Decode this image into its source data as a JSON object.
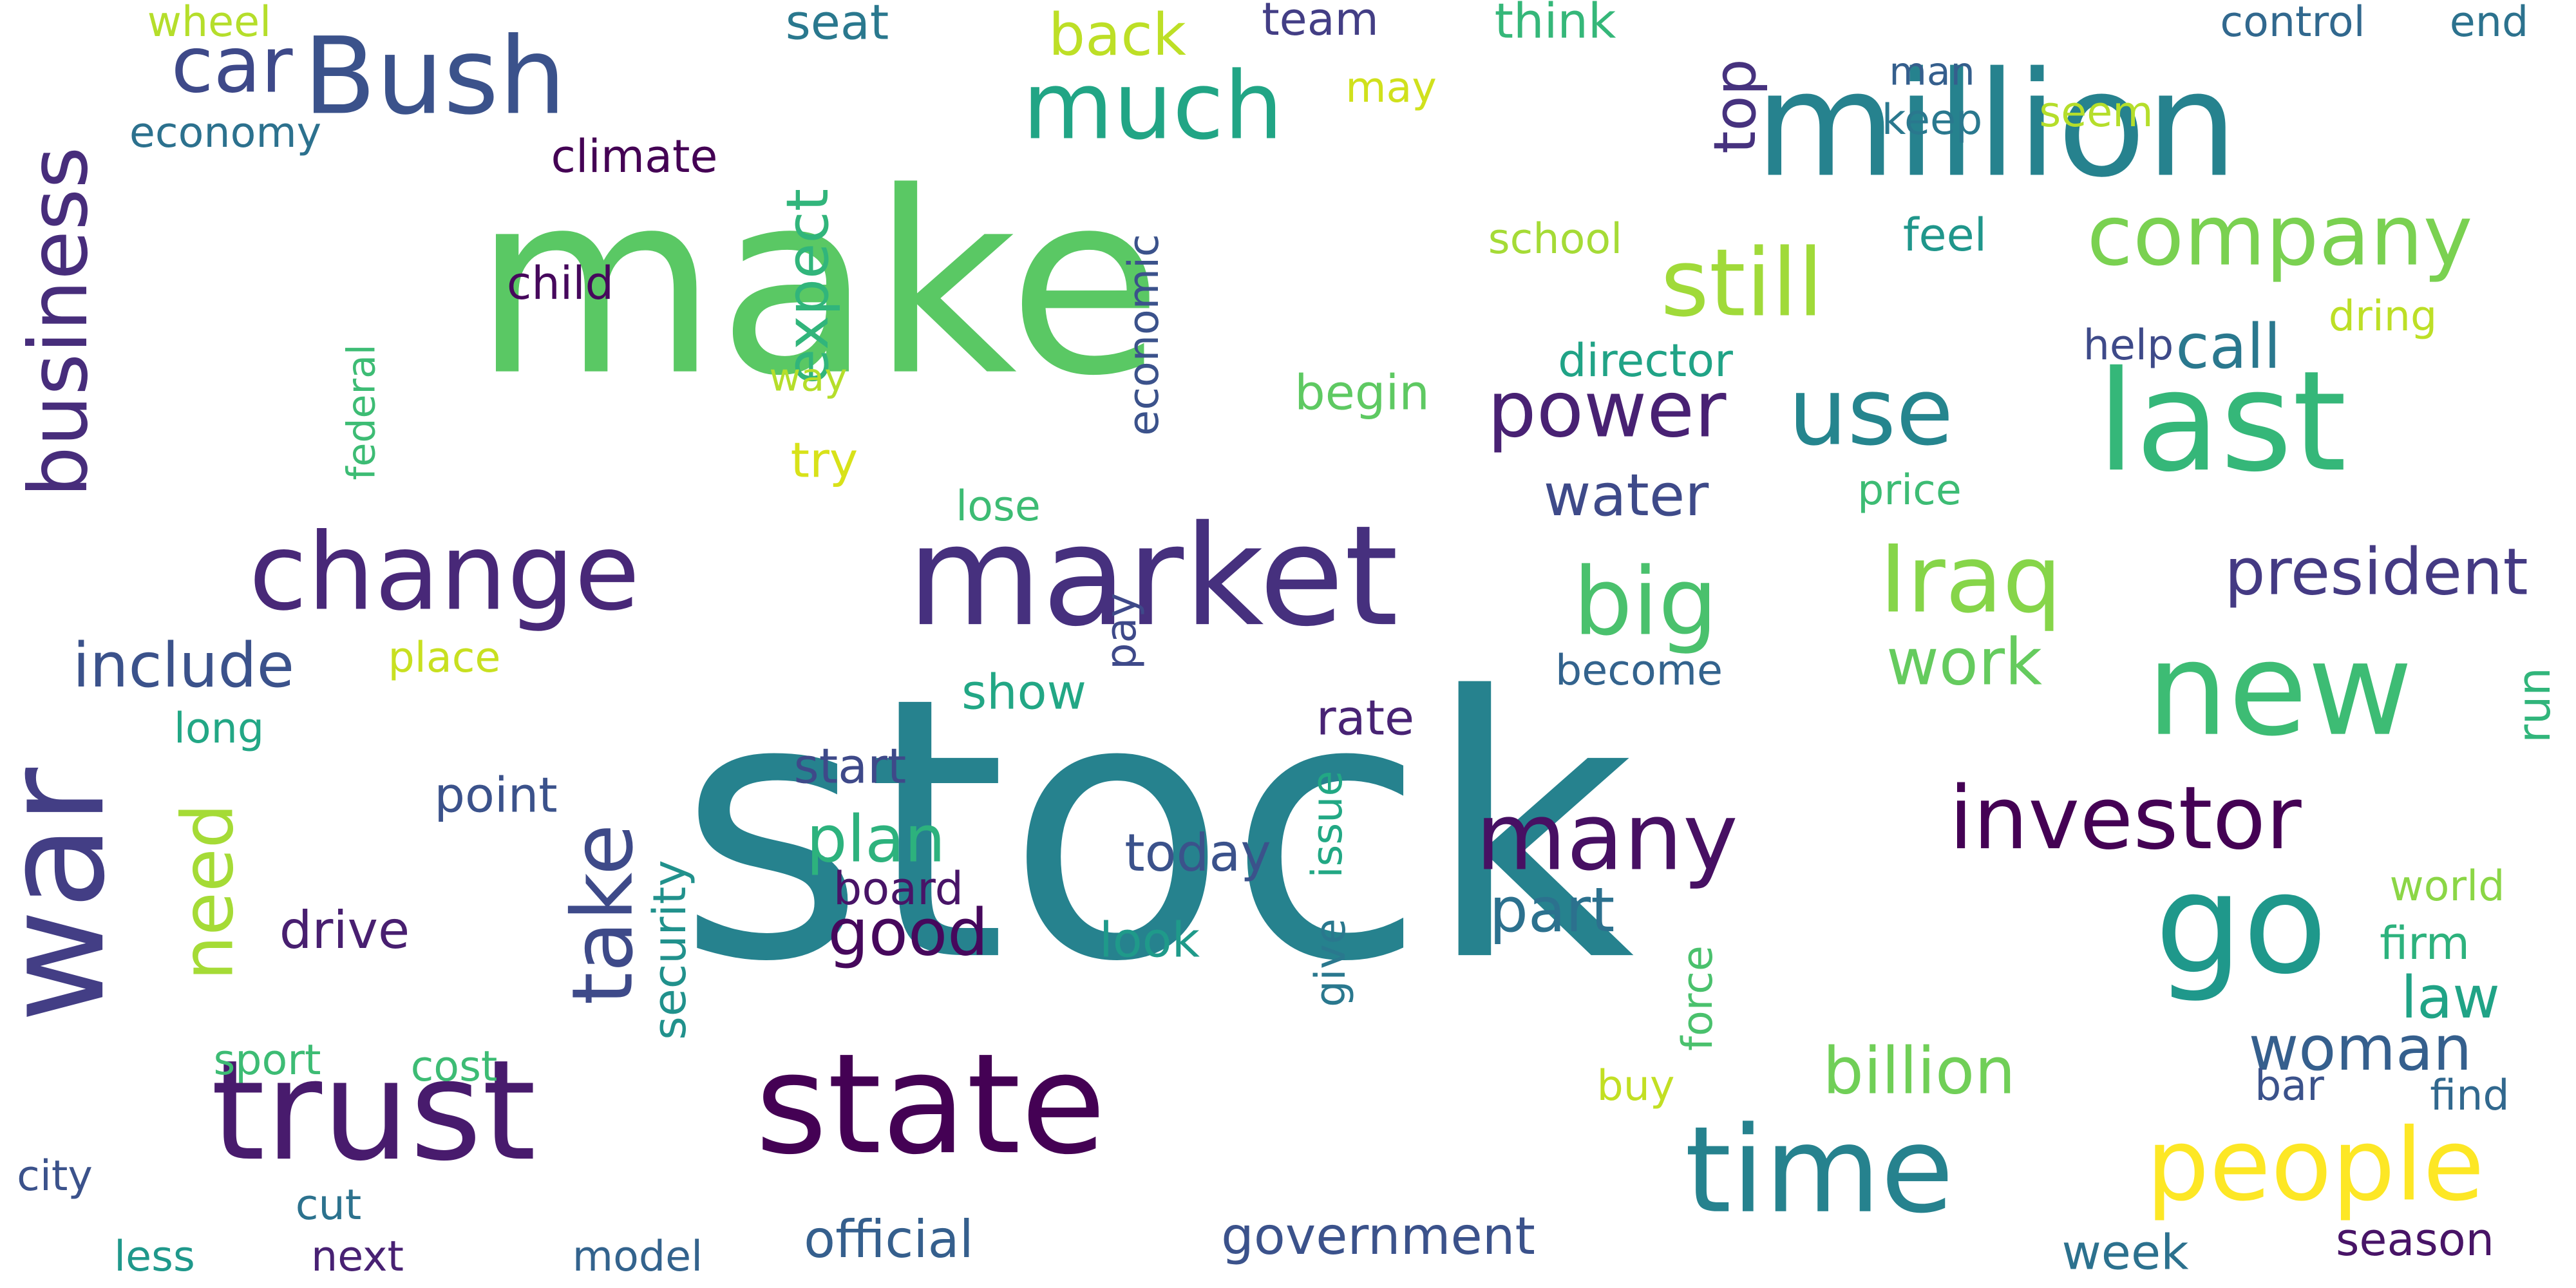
{
  "word_cloud": {
    "words": [
      {
        "text": "stock",
        "color": "#26828e"
      },
      {
        "text": "make",
        "color": "#5ac864"
      },
      {
        "text": "million",
        "color": "#26828e"
      },
      {
        "text": "trust",
        "color": "#481b6d"
      },
      {
        "text": "state",
        "color": "#440154"
      },
      {
        "text": "war",
        "color": "#433e85"
      },
      {
        "text": "market",
        "color": "#46307e"
      },
      {
        "text": "go",
        "color": "#1f988b"
      },
      {
        "text": "last",
        "color": "#35b779"
      },
      {
        "text": "new",
        "color": "#3dbc74"
      },
      {
        "text": "time",
        "color": "#26828e"
      },
      {
        "text": "people",
        "color": "#fde725"
      },
      {
        "text": "change",
        "color": "#482878"
      },
      {
        "text": "Bush",
        "color": "#3b528b"
      },
      {
        "text": "company",
        "color": "#7ad151"
      },
      {
        "text": "much",
        "color": "#21a585"
      },
      {
        "text": "many",
        "color": "#471063"
      },
      {
        "text": "investor",
        "color": "#440154"
      },
      {
        "text": "business",
        "color": "#472d7b"
      },
      {
        "text": "still",
        "color": "#a0da39"
      },
      {
        "text": "use",
        "color": "#25858e"
      },
      {
        "text": "power",
        "color": "#482173"
      },
      {
        "text": "Iraq",
        "color": "#86d549"
      },
      {
        "text": "big",
        "color": "#4ac16d"
      },
      {
        "text": "take",
        "color": "#3e4a89"
      },
      {
        "text": "car",
        "color": "#3e4989"
      },
      {
        "text": "president",
        "color": "#443a83"
      },
      {
        "text": "need",
        "color": "#a5db36"
      },
      {
        "text": "good",
        "color": "#46085c"
      },
      {
        "text": "plan",
        "color": "#2db27d"
      },
      {
        "text": "billion",
        "color": "#70cf57"
      },
      {
        "text": "woman",
        "color": "#355f8d"
      },
      {
        "text": "part",
        "color": "#2c718e"
      },
      {
        "text": "include",
        "color": "#3b528b"
      },
      {
        "text": "expect",
        "color": "#31b57b"
      },
      {
        "text": "government",
        "color": "#3b528b"
      },
      {
        "text": "official",
        "color": "#355f8d"
      },
      {
        "text": "work",
        "color": "#65cb5e"
      },
      {
        "text": "water",
        "color": "#3e4a89"
      },
      {
        "text": "call",
        "color": "#2a788e"
      },
      {
        "text": "law",
        "color": "#20a386"
      },
      {
        "text": "back",
        "color": "#bddf26"
      },
      {
        "text": "top",
        "color": "#46327e"
      },
      {
        "text": "today",
        "color": "#3b528b"
      },
      {
        "text": "drive",
        "color": "#481f70"
      },
      {
        "text": "rate",
        "color": "#482374"
      },
      {
        "text": "show",
        "color": "#22a785"
      },
      {
        "text": "start",
        "color": "#3e4989"
      },
      {
        "text": "point",
        "color": "#3b528b"
      },
      {
        "text": "look",
        "color": "#1f9a8a"
      },
      {
        "text": "board",
        "color": "#481467"
      },
      {
        "text": "security",
        "color": "#21918c"
      },
      {
        "text": "give",
        "color": "#2a788e"
      },
      {
        "text": "issue",
        "color": "#22a884"
      },
      {
        "text": "economic",
        "color": "#3b528b"
      },
      {
        "text": "child",
        "color": "#46085c"
      },
      {
        "text": "climate",
        "color": "#440154"
      },
      {
        "text": "economy",
        "color": "#2c718e"
      },
      {
        "text": "wheel",
        "color": "#b5de2b"
      },
      {
        "text": "seat",
        "color": "#2a788e"
      },
      {
        "text": "team",
        "color": "#433e85"
      },
      {
        "text": "think",
        "color": "#35b779"
      },
      {
        "text": "may",
        "color": "#d0e11c"
      },
      {
        "text": "man",
        "color": "#355f8d"
      },
      {
        "text": "keep",
        "color": "#2a788e"
      },
      {
        "text": "seem",
        "color": "#b5de2b"
      },
      {
        "text": "control",
        "color": "#31688e"
      },
      {
        "text": "end",
        "color": "#2c728e"
      },
      {
        "text": "school",
        "color": "#a5db36"
      },
      {
        "text": "feel",
        "color": "#1f968b"
      },
      {
        "text": "dring",
        "color": "#bddf26"
      },
      {
        "text": "help",
        "color": "#3e4a89"
      },
      {
        "text": "director",
        "color": "#20a386"
      },
      {
        "text": "begin",
        "color": "#5ec962"
      },
      {
        "text": "way",
        "color": "#b5de2b"
      },
      {
        "text": "try",
        "color": "#d8e219"
      },
      {
        "text": "lose",
        "color": "#3dbc74"
      },
      {
        "text": "price",
        "color": "#3dbc74"
      },
      {
        "text": "federal",
        "color": "#3dbc74"
      },
      {
        "text": "place",
        "color": "#c8e020"
      },
      {
        "text": "long",
        "color": "#22a785"
      },
      {
        "text": "become",
        "color": "#33638d"
      },
      {
        "text": "run",
        "color": "#31b57b"
      },
      {
        "text": "world",
        "color": "#8bd646"
      },
      {
        "text": "firm",
        "color": "#2db27d"
      },
      {
        "text": "bar",
        "color": "#3b528b"
      },
      {
        "text": "find",
        "color": "#31688e"
      },
      {
        "text": "pay",
        "color": "#3e4989"
      },
      {
        "text": "force",
        "color": "#4ac16d"
      },
      {
        "text": "buy",
        "color": "#c2df23"
      },
      {
        "text": "sport",
        "color": "#3dbc74"
      },
      {
        "text": "cost",
        "color": "#3dbc74"
      },
      {
        "text": "city",
        "color": "#3b528b"
      },
      {
        "text": "cut",
        "color": "#2c728e"
      },
      {
        "text": "less",
        "color": "#1f988b"
      },
      {
        "text": "next",
        "color": "#482173"
      },
      {
        "text": "model",
        "color": "#33638d"
      },
      {
        "text": "week",
        "color": "#2c718e"
      },
      {
        "text": "season",
        "color": "#481467"
      }
    ]
  }
}
